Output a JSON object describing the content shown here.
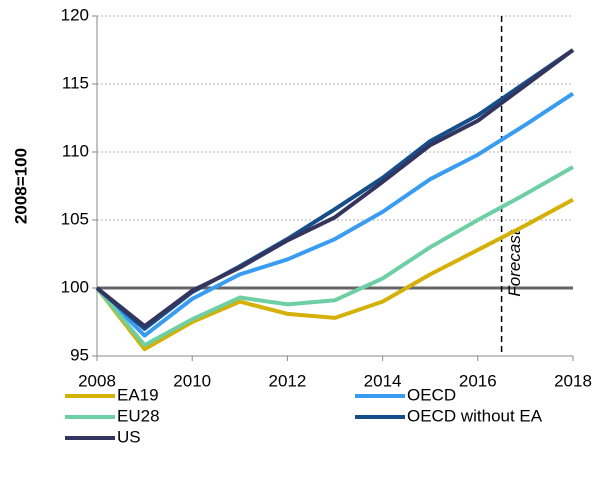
{
  "chart_data": {
    "type": "line",
    "y_label": "2008=100",
    "annotation": "Forecast",
    "forecast_x": 2016.5,
    "reference_line": 100,
    "x": [
      2008,
      2009,
      2010,
      2011,
      2012,
      2013,
      2014,
      2015,
      2016,
      2017,
      2018
    ],
    "xlim": [
      2008,
      2018
    ],
    "xticks": [
      2008,
      2010,
      2012,
      2014,
      2016,
      2018
    ],
    "ylim": [
      95,
      120
    ],
    "yticks": [
      95,
      100,
      105,
      110,
      115,
      120
    ],
    "grid": true,
    "series": [
      {
        "name": "EA19",
        "color": "#d4b106",
        "values": [
          100,
          95.5,
          97.5,
          99.0,
          98.1,
          97.8,
          99.0,
          101.0,
          102.8,
          104.6,
          106.5
        ]
      },
      {
        "name": "OECD",
        "color": "#3a9cf0",
        "values": [
          100,
          96.5,
          99.2,
          101.0,
          102.1,
          103.6,
          105.6,
          108.0,
          109.8,
          112.0,
          114.3
        ]
      },
      {
        "name": "EU28",
        "color": "#6dcfa3",
        "values": [
          100,
          95.8,
          97.7,
          99.3,
          98.8,
          99.1,
          100.7,
          103.0,
          105.0,
          106.9,
          108.9
        ]
      },
      {
        "name": "OECD without EA",
        "color": "#144f8a",
        "values": [
          100,
          97.0,
          99.7,
          101.6,
          103.6,
          105.8,
          108.1,
          110.8,
          112.7,
          115.1,
          117.5
        ]
      },
      {
        "name": "US",
        "color": "#34355f",
        "values": [
          100,
          97.2,
          99.8,
          101.5,
          103.5,
          105.2,
          107.8,
          110.5,
          112.3,
          114.9,
          117.5
        ]
      }
    ]
  }
}
